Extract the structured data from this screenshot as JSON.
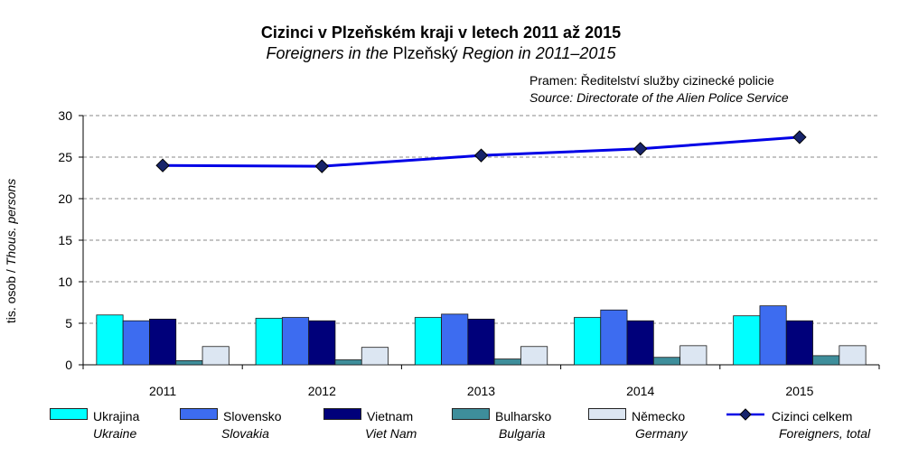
{
  "title": "Cizinci v Plzeňském kraji v letech 2011 až 2015",
  "subtitle_italic_1": "Foreigners in the ",
  "subtitle_plain": "Plzeňský",
  "subtitle_italic_2": " Region in 2011–2015",
  "source_cz": "Pramen: Ředitelství služby cizinecké policie",
  "source_en": "Source: Directorate of the Alien Police Service",
  "ylabel_cz": "tis. osob / ",
  "ylabel_en": "Thous. persons",
  "chart_data": {
    "type": "bar",
    "categories": [
      "2011",
      "2012",
      "2013",
      "2014",
      "2015"
    ],
    "ylim": [
      0,
      30
    ],
    "yticks": [
      "0",
      "5",
      "10",
      "15",
      "20",
      "25",
      "30"
    ],
    "series": [
      {
        "name": "Ukrajina",
        "name_en": "Ukraine",
        "color": "#00FFFF",
        "values": [
          6.0,
          5.6,
          5.7,
          5.7,
          5.9
        ]
      },
      {
        "name": "Slovensko",
        "name_en": "Slovakia",
        "color": "#3D6CF0",
        "values": [
          5.3,
          5.7,
          6.1,
          6.6,
          7.1
        ]
      },
      {
        "name": "Vietnam",
        "name_en": "Viet Nam",
        "color": "#00007A",
        "values": [
          5.5,
          5.3,
          5.5,
          5.3,
          5.3
        ]
      },
      {
        "name": "Bulharsko",
        "name_en": "Bulgaria",
        "color": "#3E8E9B",
        "values": [
          0.5,
          0.6,
          0.7,
          0.9,
          1.1
        ]
      },
      {
        "name": "Německo",
        "name_en": "Germany",
        "color": "#DCE6F2",
        "values": [
          2.2,
          2.1,
          2.2,
          2.3,
          2.3
        ]
      }
    ],
    "line_series": {
      "name": "Cizinci celkem",
      "name_en": "Foreigners, total",
      "type": "line",
      "color": "#0000E6",
      "marker_color": "#17246B",
      "values": [
        24.0,
        23.9,
        25.2,
        26.0,
        27.4
      ]
    }
  }
}
